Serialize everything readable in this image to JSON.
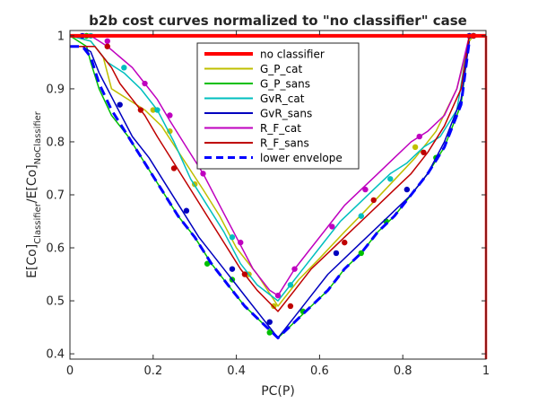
{
  "chart_data": {
    "type": "line",
    "title": "b2b cost curves normalized to \"no classifier\" case",
    "xlabel": "PC(P)",
    "ylabel": {
      "base": "E[Co]",
      "sub1": "Classifier",
      "mid": "/E[Co]",
      "sub2": "NoClassifier"
    },
    "xlim": [
      0,
      1
    ],
    "ylim": [
      0.39,
      1.01
    ],
    "xticks": [
      0,
      0.2,
      0.4,
      0.6,
      0.8,
      1
    ],
    "xtick_labels": [
      "0",
      "0.2",
      "0.4",
      "0.6",
      "0.8",
      "1"
    ],
    "yticks": [
      0.4,
      0.5,
      0.6,
      0.7,
      0.8,
      0.9,
      1
    ],
    "ytick_labels": [
      "0.4",
      "0.5",
      "0.6",
      "0.7",
      "0.8",
      "0.9",
      "1"
    ],
    "grid": false,
    "legend_position": "top-center",
    "series": [
      {
        "name": "no classifier",
        "color": "#ff0000",
        "style": "solid-thick",
        "markers": false,
        "x": [
          0,
          1
        ],
        "y": [
          1.0,
          1.0
        ]
      },
      {
        "name": "G_P_cat",
        "color": "#bfbf00",
        "style": "solid",
        "markers": true,
        "x": [
          0,
          0.05,
          0.08,
          0.1,
          0.14,
          0.18,
          0.22,
          0.27,
          0.32,
          0.36,
          0.4,
          0.45,
          0.5,
          0.55,
          0.6,
          0.66,
          0.71,
          0.77,
          0.83,
          0.88,
          0.93,
          0.96,
          0.97
        ],
        "y": [
          1.0,
          0.99,
          0.96,
          0.9,
          0.88,
          0.86,
          0.83,
          0.77,
          0.71,
          0.66,
          0.6,
          0.55,
          0.49,
          0.54,
          0.58,
          0.63,
          0.67,
          0.72,
          0.77,
          0.82,
          0.9,
          0.99,
          1.0
        ],
        "marker_x": [
          0.04,
          0.2,
          0.24,
          0.3,
          0.43,
          0.49,
          0.83,
          0.96
        ],
        "marker_y": [
          1.0,
          0.86,
          0.82,
          0.72,
          0.55,
          0.49,
          0.79,
          1.0
        ]
      },
      {
        "name": "G_P_sans",
        "color": "#00bf00",
        "style": "solid",
        "markers": true,
        "x": [
          0,
          0.04,
          0.05,
          0.07,
          0.1,
          0.14,
          0.18,
          0.22,
          0.26,
          0.3,
          0.34,
          0.38,
          0.42,
          0.46,
          0.5,
          0.54,
          0.58,
          0.62,
          0.66,
          0.7,
          0.74,
          0.78,
          0.82,
          0.86,
          0.9,
          0.94,
          0.96
        ],
        "y": [
          1.0,
          0.98,
          0.95,
          0.9,
          0.85,
          0.81,
          0.76,
          0.71,
          0.66,
          0.62,
          0.57,
          0.53,
          0.49,
          0.46,
          0.43,
          0.46,
          0.49,
          0.52,
          0.56,
          0.59,
          0.63,
          0.66,
          0.7,
          0.74,
          0.79,
          0.87,
          1.0
        ],
        "marker_x": [
          0.04,
          0.33,
          0.39,
          0.48,
          0.56,
          0.7,
          0.76,
          0.88,
          0.97
        ],
        "marker_y": [
          1.0,
          0.57,
          0.54,
          0.44,
          0.48,
          0.59,
          0.65,
          0.77,
          1.0
        ]
      },
      {
        "name": "GvR_cat",
        "color": "#00bfbf",
        "style": "solid",
        "markers": true,
        "x": [
          0,
          0.05,
          0.07,
          0.09,
          0.13,
          0.17,
          0.21,
          0.25,
          0.29,
          0.33,
          0.37,
          0.41,
          0.45,
          0.5,
          0.53,
          0.57,
          0.61,
          0.65,
          0.69,
          0.73,
          0.77,
          0.81,
          0.85,
          0.89,
          0.93,
          0.96
        ],
        "y": [
          1.0,
          0.99,
          0.97,
          0.95,
          0.93,
          0.9,
          0.86,
          0.8,
          0.73,
          0.68,
          0.63,
          0.57,
          0.53,
          0.5,
          0.53,
          0.57,
          0.61,
          0.65,
          0.68,
          0.71,
          0.74,
          0.76,
          0.79,
          0.81,
          0.86,
          1.0
        ],
        "marker_x": [
          0.05,
          0.13,
          0.21,
          0.39,
          0.53,
          0.7,
          0.77,
          0.97
        ],
        "marker_y": [
          1.0,
          0.94,
          0.86,
          0.62,
          0.53,
          0.66,
          0.73,
          1.0
        ]
      },
      {
        "name": "GvR_sans",
        "color": "#0000bf",
        "style": "solid",
        "markers": true,
        "x": [
          0,
          0.03,
          0.05,
          0.07,
          0.09,
          0.11,
          0.15,
          0.19,
          0.23,
          0.27,
          0.31,
          0.35,
          0.39,
          0.43,
          0.47,
          0.5,
          0.54,
          0.58,
          0.62,
          0.66,
          0.7,
          0.74,
          0.78,
          0.82,
          0.86,
          0.9,
          0.94,
          0.96
        ],
        "y": [
          0.98,
          0.98,
          0.97,
          0.93,
          0.9,
          0.87,
          0.81,
          0.77,
          0.72,
          0.67,
          0.62,
          0.58,
          0.54,
          0.5,
          0.46,
          0.43,
          0.47,
          0.51,
          0.55,
          0.58,
          0.61,
          0.64,
          0.67,
          0.7,
          0.74,
          0.8,
          0.88,
          0.99
        ],
        "marker_x": [
          0.03,
          0.12,
          0.28,
          0.39,
          0.48,
          0.64,
          0.81,
          0.96
        ],
        "marker_y": [
          1.0,
          0.87,
          0.67,
          0.56,
          0.46,
          0.59,
          0.71,
          1.0
        ]
      },
      {
        "name": "R_F_cat",
        "color": "#bf00bf",
        "style": "solid",
        "markers": true,
        "x": [
          0,
          0.05,
          0.07,
          0.09,
          0.12,
          0.15,
          0.18,
          0.21,
          0.24,
          0.28,
          0.32,
          0.36,
          0.4,
          0.44,
          0.48,
          0.5,
          0.54,
          0.58,
          0.62,
          0.66,
          0.7,
          0.74,
          0.78,
          0.82,
          0.86,
          0.9,
          0.93,
          0.96
        ],
        "y": [
          1.0,
          1.0,
          0.99,
          0.98,
          0.96,
          0.94,
          0.91,
          0.88,
          0.84,
          0.79,
          0.74,
          0.68,
          0.62,
          0.56,
          0.52,
          0.51,
          0.56,
          0.6,
          0.64,
          0.68,
          0.71,
          0.74,
          0.77,
          0.8,
          0.82,
          0.85,
          0.9,
          1.0
        ],
        "marker_x": [
          0.09,
          0.18,
          0.24,
          0.32,
          0.41,
          0.5,
          0.54,
          0.63,
          0.71,
          0.84,
          0.97
        ],
        "marker_y": [
          0.99,
          0.91,
          0.85,
          0.74,
          0.61,
          0.51,
          0.56,
          0.64,
          0.71,
          0.81,
          1.0
        ]
      },
      {
        "name": "R_F_sans",
        "color": "#bf0000",
        "style": "solid",
        "markers": true,
        "x": [
          0,
          0.04,
          0.06,
          0.08,
          0.1,
          0.12,
          0.15,
          0.18,
          0.21,
          0.25,
          0.29,
          0.33,
          0.37,
          0.41,
          0.45,
          0.5,
          0.54,
          0.58,
          0.62,
          0.66,
          0.7,
          0.74,
          0.78,
          0.82,
          0.86,
          0.9,
          0.94,
          0.96
        ],
        "y": [
          0.98,
          0.98,
          0.98,
          0.96,
          0.94,
          0.91,
          0.88,
          0.85,
          0.81,
          0.76,
          0.71,
          0.66,
          0.61,
          0.56,
          0.52,
          0.48,
          0.52,
          0.56,
          0.59,
          0.62,
          0.65,
          0.68,
          0.71,
          0.74,
          0.78,
          0.83,
          0.9,
          1.0
        ],
        "marker_x": [
          0.09,
          0.17,
          0.25,
          0.42,
          0.53,
          0.66,
          0.73,
          0.85,
          0.97
        ],
        "marker_y": [
          0.98,
          0.86,
          0.75,
          0.55,
          0.49,
          0.61,
          0.69,
          0.78,
          1.0
        ]
      },
      {
        "name": "lower envelope",
        "color": "#0000ff",
        "style": "dashed-thick",
        "markers": false,
        "x": [
          0,
          0.03,
          0.05,
          0.07,
          0.1,
          0.14,
          0.18,
          0.22,
          0.26,
          0.3,
          0.34,
          0.38,
          0.42,
          0.46,
          0.5,
          0.54,
          0.58,
          0.62,
          0.66,
          0.7,
          0.74,
          0.78,
          0.82,
          0.86,
          0.9,
          0.94,
          0.96
        ],
        "y": [
          0.98,
          0.98,
          0.96,
          0.91,
          0.86,
          0.81,
          0.76,
          0.71,
          0.66,
          0.62,
          0.57,
          0.53,
          0.49,
          0.46,
          0.43,
          0.46,
          0.49,
          0.52,
          0.56,
          0.59,
          0.63,
          0.66,
          0.7,
          0.74,
          0.79,
          0.87,
          0.99
        ]
      }
    ]
  }
}
